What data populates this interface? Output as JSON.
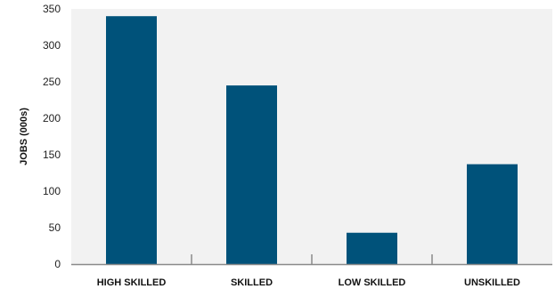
{
  "chart_data": {
    "type": "bar",
    "title": "",
    "xlabel": "",
    "ylabel": "JOBS (000s)",
    "categories": [
      "HIGH SKILLED",
      "SKILLED",
      "LOW SKILLED",
      "UNSKILLED"
    ],
    "values": [
      340,
      245,
      43,
      137
    ],
    "ylim": [
      0,
      350
    ],
    "yticks": [
      0,
      50,
      100,
      150,
      200,
      250,
      300,
      350
    ],
    "grid": false,
    "legend": "none",
    "colors": {
      "bar": "#00527a",
      "plot_background": "#f2f2f2",
      "axis": "#8a8a8a"
    }
  }
}
